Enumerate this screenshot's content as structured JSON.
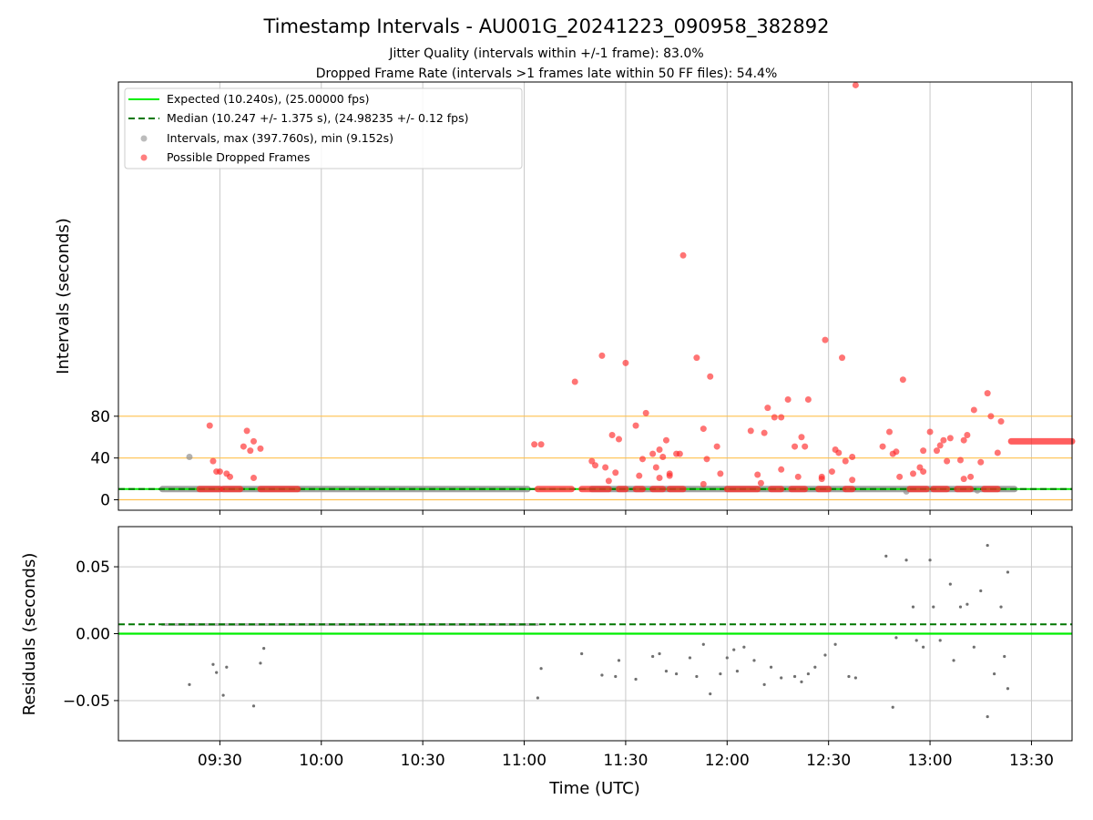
{
  "title": "Timestamp Intervals - AU001G_20241223_090958_382892",
  "subtitle_lines": [
    "Jitter Quality (intervals within +/-1 frame): 83.0%",
    "Dropped Frame Rate (intervals >1 frames late within 50 FF files): 54.4%"
  ],
  "colors": {
    "expected": "#00ee00",
    "median": "#007700",
    "normal_points": "#909090",
    "dropped_points": "#ff2a2a",
    "threshold_lines": "#ffc04d",
    "grid": "#c8c8c8"
  },
  "chart_data": [
    {
      "type": "scatter",
      "panel": "intervals",
      "ylabel": "Intervals (seconds)",
      "ylim": [
        -10,
        400
      ],
      "yticks": [
        0,
        40,
        80
      ],
      "xlim_minutes_utc": [
        540,
        822
      ],
      "threshold_lines": [
        0,
        40,
        80
      ],
      "grid": true,
      "legend_position": "top-left",
      "legend": [
        "Expected (10.240s), (25.00000 fps)",
        "Median (10.247 +/- 1.375 s), (24.98235 +/- 0.12 fps)",
        "Intervals, max (397.760s), min (9.152s)",
        "Possible Dropped Frames"
      ],
      "expected_value": 10.24,
      "median_value": 10.247,
      "normal_segments": [
        {
          "x_start": "09:13",
          "x_end": "11:01",
          "y": 10.24
        },
        {
          "x_start": "11:20",
          "x_end": "13:25",
          "y": 10.24
        }
      ],
      "normal_points": [
        {
          "x": "09:21",
          "y": 41
        },
        {
          "x": "12:53",
          "y": 8
        },
        {
          "x": "13:14",
          "y": 9
        }
      ],
      "dropped_points": [
        {
          "x": "09:27",
          "y": 71
        },
        {
          "x": "09:28",
          "y": 37
        },
        {
          "x": "09:29",
          "y": 27
        },
        {
          "x": "09:30",
          "y": 27
        },
        {
          "x": "09:32",
          "y": 25
        },
        {
          "x": "09:33",
          "y": 22
        },
        {
          "x": "09:37",
          "y": 51
        },
        {
          "x": "09:38",
          "y": 66
        },
        {
          "x": "09:39",
          "y": 47
        },
        {
          "x": "09:40",
          "y": 56
        },
        {
          "x": "09:40",
          "y": 21
        },
        {
          "x": "09:42",
          "y": 49
        },
        {
          "x": "11:03",
          "y": 53
        },
        {
          "x": "11:05",
          "y": 53
        },
        {
          "x": "11:15",
          "y": 113
        },
        {
          "x": "11:20",
          "y": 37
        },
        {
          "x": "11:21",
          "y": 33
        },
        {
          "x": "11:23",
          "y": 138
        },
        {
          "x": "11:24",
          "y": 31
        },
        {
          "x": "11:25",
          "y": 18
        },
        {
          "x": "11:26",
          "y": 62
        },
        {
          "x": "11:27",
          "y": 26
        },
        {
          "x": "11:28",
          "y": 58
        },
        {
          "x": "11:30",
          "y": 131
        },
        {
          "x": "11:33",
          "y": 71
        },
        {
          "x": "11:34",
          "y": 23
        },
        {
          "x": "11:35",
          "y": 39
        },
        {
          "x": "11:36",
          "y": 83
        },
        {
          "x": "11:38",
          "y": 44
        },
        {
          "x": "11:39",
          "y": 31
        },
        {
          "x": "11:40",
          "y": 48
        },
        {
          "x": "11:40",
          "y": 21
        },
        {
          "x": "11:41",
          "y": 41
        },
        {
          "x": "11:42",
          "y": 57
        },
        {
          "x": "11:43",
          "y": 23
        },
        {
          "x": "11:43",
          "y": 25
        },
        {
          "x": "11:45",
          "y": 44
        },
        {
          "x": "11:46",
          "y": 44
        },
        {
          "x": "11:47",
          "y": 234
        },
        {
          "x": "11:51",
          "y": 136
        },
        {
          "x": "11:53",
          "y": 15
        },
        {
          "x": "11:53",
          "y": 68
        },
        {
          "x": "11:54",
          "y": 39
        },
        {
          "x": "11:55",
          "y": 118
        },
        {
          "x": "11:57",
          "y": 51
        },
        {
          "x": "11:58",
          "y": 25
        },
        {
          "x": "12:07",
          "y": 66
        },
        {
          "x": "12:09",
          "y": 24
        },
        {
          "x": "12:10",
          "y": 16
        },
        {
          "x": "12:11",
          "y": 64
        },
        {
          "x": "12:12",
          "y": 88
        },
        {
          "x": "12:14",
          "y": 79
        },
        {
          "x": "12:16",
          "y": 79
        },
        {
          "x": "12:16",
          "y": 29
        },
        {
          "x": "12:18",
          "y": 96
        },
        {
          "x": "12:20",
          "y": 51
        },
        {
          "x": "12:21",
          "y": 22
        },
        {
          "x": "12:22",
          "y": 60
        },
        {
          "x": "12:23",
          "y": 51
        },
        {
          "x": "12:24",
          "y": 96
        },
        {
          "x": "12:28",
          "y": 22
        },
        {
          "x": "12:28",
          "y": 20
        },
        {
          "x": "12:29",
          "y": 153
        },
        {
          "x": "12:31",
          "y": 27
        },
        {
          "x": "12:32",
          "y": 48
        },
        {
          "x": "12:33",
          "y": 45
        },
        {
          "x": "12:34",
          "y": 136
        },
        {
          "x": "12:35",
          "y": 37
        },
        {
          "x": "12:37",
          "y": 19
        },
        {
          "x": "12:37",
          "y": 41
        },
        {
          "x": "12:38",
          "y": 397
        },
        {
          "x": "12:46",
          "y": 51
        },
        {
          "x": "12:48",
          "y": 65
        },
        {
          "x": "12:49",
          "y": 44
        },
        {
          "x": "12:50",
          "y": 46
        },
        {
          "x": "12:51",
          "y": 22
        },
        {
          "x": "12:52",
          "y": 115
        },
        {
          "x": "12:55",
          "y": 25
        },
        {
          "x": "12:57",
          "y": 31
        },
        {
          "x": "12:58",
          "y": 47
        },
        {
          "x": "12:58",
          "y": 27
        },
        {
          "x": "13:00",
          "y": 65
        },
        {
          "x": "13:02",
          "y": 47
        },
        {
          "x": "13:03",
          "y": 52
        },
        {
          "x": "13:04",
          "y": 57
        },
        {
          "x": "13:05",
          "y": 37
        },
        {
          "x": "13:06",
          "y": 59
        },
        {
          "x": "13:09",
          "y": 38
        },
        {
          "x": "13:10",
          "y": 20
        },
        {
          "x": "13:10",
          "y": 57
        },
        {
          "x": "13:11",
          "y": 62
        },
        {
          "x": "13:12",
          "y": 22
        },
        {
          "x": "13:13",
          "y": 86
        },
        {
          "x": "13:15",
          "y": 36
        },
        {
          "x": "13:17",
          "y": 102
        },
        {
          "x": "13:18",
          "y": 80
        },
        {
          "x": "13:20",
          "y": 45
        },
        {
          "x": "13:21",
          "y": 75
        }
      ],
      "dropped_bands": [
        {
          "x_start": "09:24",
          "x_end": "09:30",
          "y": 10.3
        },
        {
          "x_start": "09:31",
          "x_end": "09:36",
          "y": 10.3
        },
        {
          "x_start": "09:42",
          "x_end": "09:53",
          "y": 10.3
        },
        {
          "x_start": "11:04",
          "x_end": "11:14",
          "y": 10.3
        },
        {
          "x_start": "11:17",
          "x_end": "11:25",
          "y": 10.3
        },
        {
          "x_start": "11:28",
          "x_end": "11:30",
          "y": 10.3
        },
        {
          "x_start": "11:33",
          "x_end": "11:35",
          "y": 10.3
        },
        {
          "x_start": "11:38",
          "x_end": "11:41",
          "y": 10.3
        },
        {
          "x_start": "11:43",
          "x_end": "11:47",
          "y": 10.3
        },
        {
          "x_start": "12:00",
          "x_end": "12:09",
          "y": 10.3
        },
        {
          "x_start": "12:13",
          "x_end": "12:16",
          "y": 10.3
        },
        {
          "x_start": "12:19",
          "x_end": "12:23",
          "y": 10.3
        },
        {
          "x_start": "12:27",
          "x_end": "12:30",
          "y": 10.3
        },
        {
          "x_start": "12:35",
          "x_end": "12:37",
          "y": 10.3
        },
        {
          "x_start": "12:54",
          "x_end": "12:59",
          "y": 10.3
        },
        {
          "x_start": "13:01",
          "x_end": "13:05",
          "y": 10.3
        },
        {
          "x_start": "13:08",
          "x_end": "13:12",
          "y": 10.3
        },
        {
          "x_start": "13:16",
          "x_end": "13:20",
          "y": 10.3
        },
        {
          "x_start": "13:24",
          "x_end": "13:42",
          "y": 56
        }
      ]
    },
    {
      "type": "scatter",
      "panel": "residuals",
      "ylabel": "Residuals (seconds)",
      "xlabel": "Time (UTC)",
      "ylim": [
        -0.08,
        0.08
      ],
      "yticks": [
        -0.05,
        0.0,
        0.05
      ],
      "ytick_labels": [
        "−0.05",
        "0.00",
        "0.05"
      ],
      "xticks": [
        "09:30",
        "10:00",
        "10:30",
        "11:00",
        "11:30",
        "12:00",
        "12:30",
        "13:00",
        "13:30"
      ],
      "grid": true,
      "expected_value": 0.0,
      "median_value": 0.007,
      "residual_band": {
        "x_start": "09:13",
        "x_end": "11:04",
        "y": 0.0068
      },
      "points": [
        {
          "x": "09:21",
          "y": -0.038
        },
        {
          "x": "09:28",
          "y": -0.023
        },
        {
          "x": "09:29",
          "y": -0.029
        },
        {
          "x": "09:31",
          "y": -0.046
        },
        {
          "x": "09:32",
          "y": -0.025
        },
        {
          "x": "09:40",
          "y": -0.054
        },
        {
          "x": "09:42",
          "y": -0.022
        },
        {
          "x": "09:43",
          "y": -0.011
        },
        {
          "x": "11:04",
          "y": -0.048
        },
        {
          "x": "11:05",
          "y": -0.026
        },
        {
          "x": "11:17",
          "y": -0.015
        },
        {
          "x": "11:23",
          "y": -0.031
        },
        {
          "x": "11:27",
          "y": -0.032
        },
        {
          "x": "11:28",
          "y": -0.02
        },
        {
          "x": "11:33",
          "y": -0.034
        },
        {
          "x": "11:38",
          "y": -0.017
        },
        {
          "x": "11:40",
          "y": -0.015
        },
        {
          "x": "11:42",
          "y": -0.028
        },
        {
          "x": "11:45",
          "y": -0.03
        },
        {
          "x": "11:49",
          "y": -0.018
        },
        {
          "x": "11:51",
          "y": -0.032
        },
        {
          "x": "11:53",
          "y": -0.008
        },
        {
          "x": "11:55",
          "y": -0.045
        },
        {
          "x": "11:58",
          "y": -0.03
        },
        {
          "x": "12:00",
          "y": -0.018
        },
        {
          "x": "12:02",
          "y": -0.012
        },
        {
          "x": "12:03",
          "y": -0.028
        },
        {
          "x": "12:05",
          "y": -0.01
        },
        {
          "x": "12:08",
          "y": -0.02
        },
        {
          "x": "12:11",
          "y": -0.038
        },
        {
          "x": "12:13",
          "y": -0.025
        },
        {
          "x": "12:16",
          "y": -0.033
        },
        {
          "x": "12:20",
          "y": -0.032
        },
        {
          "x": "12:22",
          "y": -0.036
        },
        {
          "x": "12:24",
          "y": -0.03
        },
        {
          "x": "12:26",
          "y": -0.025
        },
        {
          "x": "12:29",
          "y": -0.016
        },
        {
          "x": "12:32",
          "y": -0.008
        },
        {
          "x": "12:36",
          "y": -0.032
        },
        {
          "x": "12:38",
          "y": -0.033
        },
        {
          "x": "12:47",
          "y": 0.058
        },
        {
          "x": "12:49",
          "y": -0.055
        },
        {
          "x": "12:50",
          "y": -0.003
        },
        {
          "x": "12:53",
          "y": 0.055
        },
        {
          "x": "12:55",
          "y": 0.02
        },
        {
          "x": "12:56",
          "y": -0.005
        },
        {
          "x": "12:58",
          "y": -0.01
        },
        {
          "x": "13:00",
          "y": 0.055
        },
        {
          "x": "13:01",
          "y": 0.02
        },
        {
          "x": "13:03",
          "y": -0.005
        },
        {
          "x": "13:06",
          "y": 0.037
        },
        {
          "x": "13:07",
          "y": -0.02
        },
        {
          "x": "13:09",
          "y": 0.02
        },
        {
          "x": "13:11",
          "y": 0.022
        },
        {
          "x": "13:13",
          "y": -0.01
        },
        {
          "x": "13:15",
          "y": 0.032
        },
        {
          "x": "13:17",
          "y": 0.066
        },
        {
          "x": "13:17",
          "y": -0.062
        },
        {
          "x": "13:19",
          "y": -0.03
        },
        {
          "x": "13:21",
          "y": 0.02
        },
        {
          "x": "13:22",
          "y": -0.017
        },
        {
          "x": "13:23",
          "y": 0.046
        },
        {
          "x": "13:23",
          "y": -0.041
        }
      ]
    }
  ]
}
